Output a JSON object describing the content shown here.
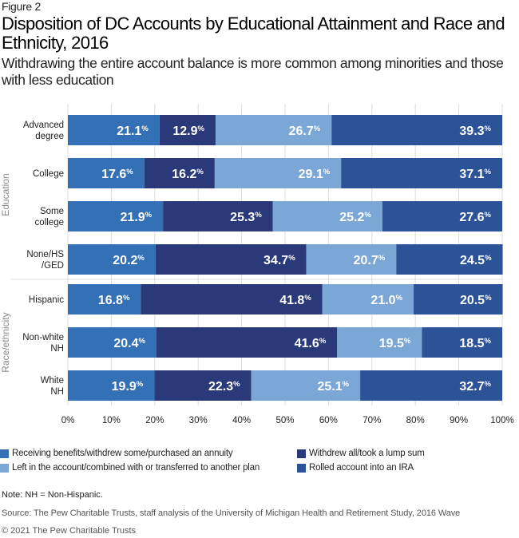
{
  "figure_label": "Figure 2",
  "title": "Disposition of DC Accounts by Educational Attainment and Race and Ethnicity, 2016",
  "subtitle": "Withdrawing the entire account balance is more common among minorities and those with less education",
  "note": "Note: NH = Non-Hispanic.",
  "source": "Source: The Pew Charitable Trusts, staff analysis of the University of Michigan Health and Retirement Study, 2016 Wave",
  "copyright": "© 2021 The Pew Charitable Trusts",
  "colors": {
    "receiving": "#3470b5",
    "withdrew_all": "#29397a",
    "left_in_account": "#7ba7d7",
    "rolled_ira": "#2c5398",
    "grid": "#dddddd",
    "group_label": "#8a8a8a"
  },
  "chart_data": {
    "type": "bar",
    "orientation": "horizontal",
    "stacked": true,
    "title": "Disposition of DC Accounts by Educational Attainment and Race and Ethnicity, 2016",
    "xlabel": "",
    "ylabel": "",
    "xlim": [
      0,
      100
    ],
    "x_ticks": [
      "0%",
      "10%",
      "20%",
      "30%",
      "40%",
      "50%",
      "60%",
      "70%",
      "80%",
      "90%",
      "100%"
    ],
    "value_suffix": "%",
    "grid": true,
    "legend_position": "bottom",
    "groups": [
      {
        "name": "Education",
        "categories": [
          "Advanced degree",
          "College",
          "Some college",
          "None/HS /GED"
        ]
      },
      {
        "name": "Race/ethnicity",
        "categories": [
          "Hispanic",
          "Non-white NH",
          "White NH"
        ]
      }
    ],
    "categories": [
      {
        "label_lines": [
          "Advanced",
          "degree"
        ],
        "group": "Education"
      },
      {
        "label_lines": [
          "College"
        ],
        "group": "Education"
      },
      {
        "label_lines": [
          "Some",
          "college"
        ],
        "group": "Education"
      },
      {
        "label_lines": [
          "None/HS",
          "/GED"
        ],
        "group": "Education"
      },
      {
        "label_lines": [
          "Hispanic"
        ],
        "group": "Race/ethnicity"
      },
      {
        "label_lines": [
          "Non-white",
          "NH"
        ],
        "group": "Race/ethnicity"
      },
      {
        "label_lines": [
          "White",
          "NH"
        ],
        "group": "Race/ethnicity"
      }
    ],
    "series": [
      {
        "name": "Receiving benefits/withdrew some/purchased an annuity",
        "color_key": "receiving",
        "values": [
          21.1,
          17.6,
          21.9,
          20.2,
          16.8,
          20.4,
          19.9
        ]
      },
      {
        "name": "Withdrew all/took a lump sum",
        "color_key": "withdrew_all",
        "values": [
          12.9,
          16.2,
          25.3,
          34.7,
          41.8,
          41.6,
          22.3
        ]
      },
      {
        "name": "Left in the account/combined with or transferred to another plan",
        "color_key": "left_in_account",
        "values": [
          26.7,
          29.1,
          25.2,
          20.7,
          21.0,
          19.5,
          25.1
        ]
      },
      {
        "name": "Rolled account into an IRA",
        "color_key": "rolled_ira",
        "values": [
          39.3,
          37.1,
          27.6,
          24.5,
          20.5,
          18.5,
          32.7
        ]
      }
    ]
  },
  "legend": [
    {
      "label": "Receiving benefits/withdrew some/purchased an annuity",
      "color_key": "receiving"
    },
    {
      "label": "Withdrew all/took a lump sum",
      "color_key": "withdrew_all"
    },
    {
      "label": "Left in the account/combined with or transferred to another plan",
      "color_key": "left_in_account"
    },
    {
      "label": "Rolled account into an IRA",
      "color_key": "rolled_ira"
    }
  ]
}
